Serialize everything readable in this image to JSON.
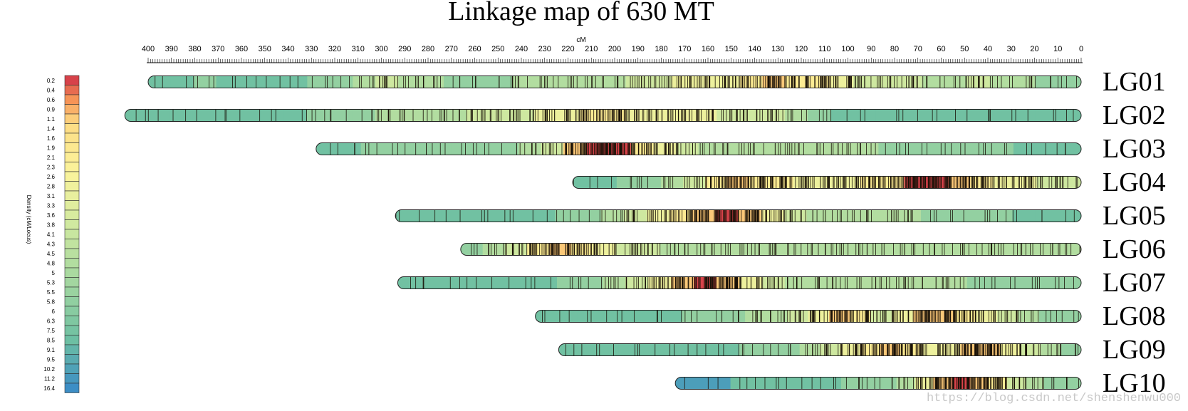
{
  "chart_data": {
    "type": "heatmap",
    "title": "Linkage map of 630 MT",
    "xlabel": "cM",
    "x_axis": {
      "min": 0,
      "max": 400,
      "reversed": true,
      "major_step": 10,
      "minor_step": 1,
      "tick_labels": [
        "400",
        "390",
        "380",
        "370",
        "360",
        "350",
        "340",
        "330",
        "320",
        "310",
        "300",
        "290",
        "280",
        "270",
        "260",
        "250",
        "240",
        "230",
        "220",
        "210",
        "200",
        "190",
        "180",
        "170",
        "160",
        "150",
        "140",
        "130",
        "120",
        "110",
        "100",
        "90",
        "80",
        "70",
        "60",
        "50",
        "40",
        "30",
        "20",
        "10",
        "0"
      ]
    },
    "legend": {
      "title": "Density (cM/Locus)",
      "placement": "left",
      "levels": [
        "0.2",
        "0.4",
        "0.6",
        "0.9",
        "1.1",
        "1.4",
        "1.6",
        "1.9",
        "2.1",
        "2.3",
        "2.6",
        "2.8",
        "3.1",
        "3.3",
        "3.6",
        "3.8",
        "4.1",
        "4.3",
        "4.5",
        "4.8",
        "5",
        "5.3",
        "5.5",
        "5.8",
        "6",
        "6.3",
        "7.5",
        "8.5",
        "9.1",
        "9.5",
        "10.2",
        "11.2",
        "16.4"
      ],
      "low_color": "#d7424a",
      "mid_color": "#fbf49c",
      "high_color": "#3d8ec5"
    },
    "series": [
      {
        "name": "LG01",
        "length": 400,
        "marker_density": [
          1,
          1,
          2,
          1,
          1,
          1,
          1,
          2,
          2,
          3,
          4,
          3,
          3,
          2,
          2,
          2,
          3,
          3,
          3,
          3,
          3,
          4,
          4,
          5,
          5,
          5,
          6,
          7,
          6,
          6,
          5,
          4,
          4,
          4,
          3,
          3,
          4,
          3,
          3,
          2,
          2
        ]
      },
      {
        "name": "LG02",
        "length": 410,
        "marker_density": [
          1,
          1,
          1,
          1,
          1,
          1,
          1,
          1,
          2,
          2,
          2,
          3,
          3,
          3,
          3,
          4,
          4,
          4,
          5,
          5,
          6,
          6,
          5,
          5,
          5,
          5,
          4,
          4,
          4,
          3,
          2,
          1,
          1,
          1,
          1,
          1,
          1,
          1,
          1,
          1,
          1,
          1
        ]
      },
      {
        "name": "LG03",
        "length": 328,
        "marker_density": [
          1,
          1,
          2,
          2,
          2,
          2,
          2,
          2,
          2,
          3,
          4,
          7,
          8,
          8,
          6,
          5,
          4,
          3,
          3,
          3,
          3,
          3,
          3,
          3,
          3,
          2,
          2,
          2,
          2,
          2,
          2,
          1,
          1,
          1
        ]
      },
      {
        "name": "LG04",
        "length": 218,
        "marker_density": [
          1,
          1,
          2,
          2,
          3,
          4,
          6,
          7,
          6,
          6,
          5,
          5,
          5,
          6,
          6,
          8,
          8,
          7,
          6,
          5,
          5,
          4,
          4
        ]
      },
      {
        "name": "LG05",
        "length": 294,
        "marker_density": [
          1,
          1,
          1,
          1,
          1,
          1,
          1,
          2,
          2,
          3,
          4,
          5,
          6,
          7,
          8,
          7,
          5,
          4,
          3,
          3,
          3,
          3,
          3,
          2,
          2,
          2,
          2,
          1,
          1,
          1
        ]
      },
      {
        "name": "LG06",
        "length": 266,
        "marker_density": [
          2,
          3,
          4,
          6,
          7,
          6,
          5,
          4,
          4,
          3,
          3,
          3,
          3,
          3,
          3,
          3,
          3,
          3,
          3,
          3,
          3,
          3,
          3,
          3,
          3,
          3,
          3,
          3
        ]
      },
      {
        "name": "LG07",
        "length": 293,
        "marker_density": [
          1,
          1,
          1,
          1,
          1,
          1,
          1,
          2,
          2,
          3,
          4,
          5,
          7,
          8,
          7,
          5,
          4,
          3,
          3,
          3,
          3,
          3,
          3,
          3,
          3,
          2,
          2,
          2,
          2,
          2
        ]
      },
      {
        "name": "LG08",
        "length": 234,
        "marker_density": [
          1,
          1,
          1,
          1,
          1,
          1,
          1,
          2,
          2,
          2,
          3,
          3,
          4,
          5,
          7,
          6,
          4,
          5,
          7,
          7,
          6,
          5,
          4,
          3,
          2,
          2
        ]
      },
      {
        "name": "LG09",
        "length": 224,
        "marker_density": [
          1,
          1,
          1,
          1,
          1,
          1,
          1,
          1,
          1,
          2,
          2,
          2,
          3,
          4,
          5,
          6,
          7,
          6,
          5,
          5,
          7,
          7,
          5,
          4,
          3,
          2
        ]
      },
      {
        "name": "LG10",
        "length": 174,
        "marker_density": [
          0,
          0,
          0,
          1,
          1,
          1,
          1,
          1,
          1,
          2,
          2,
          2,
          3,
          5,
          7,
          8,
          7,
          6,
          4,
          3,
          2,
          2
        ]
      }
    ]
  },
  "watermark": "https://blog.csdn.net/shenshenwu000"
}
